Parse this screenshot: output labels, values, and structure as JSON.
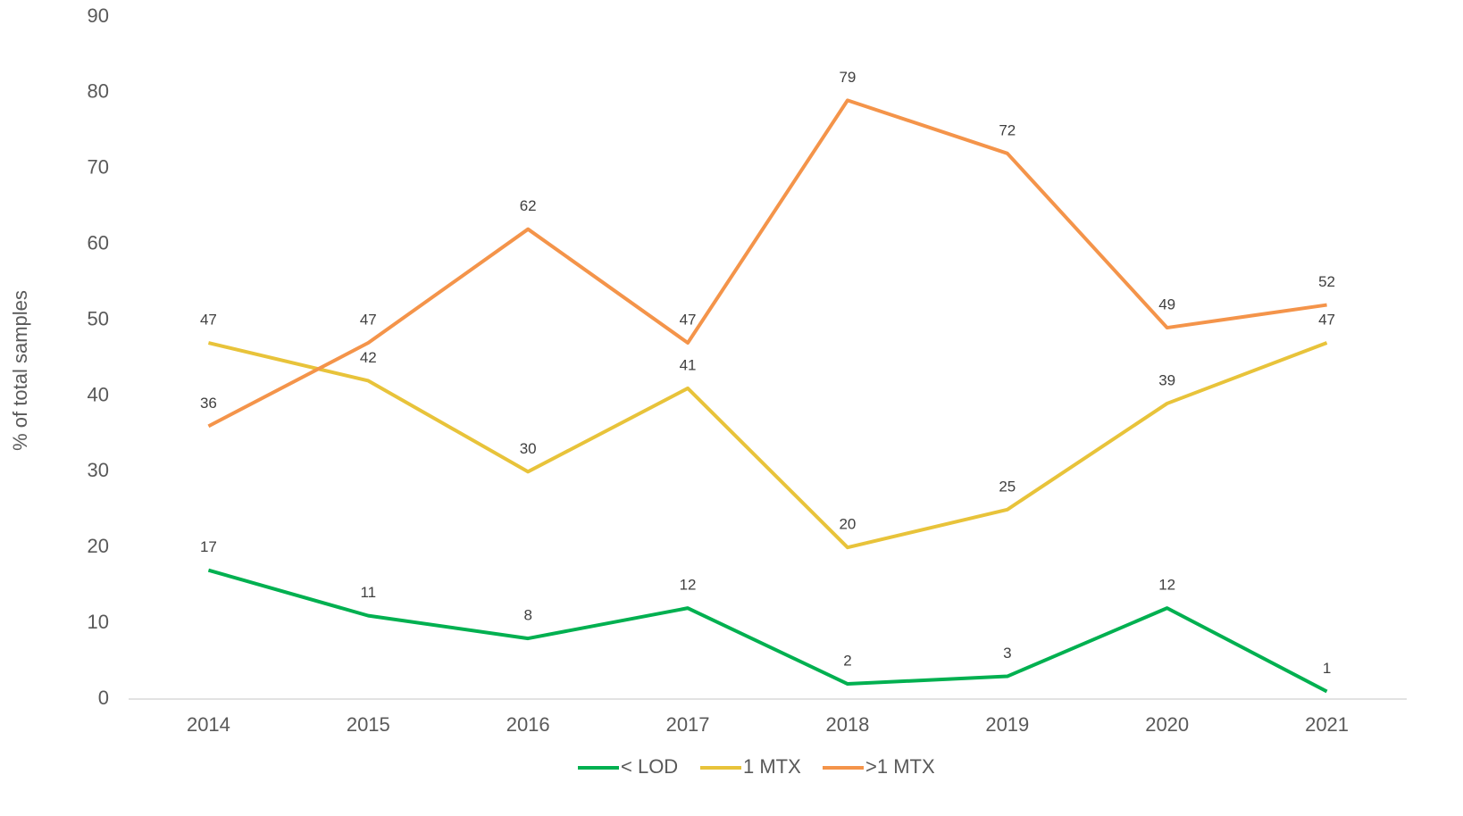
{
  "chart_data": {
    "type": "line",
    "y_label": "% of total samples",
    "categories": [
      "2014",
      "2015",
      "2016",
      "2017",
      "2018",
      "2019",
      "2020",
      "2021"
    ],
    "series": [
      {
        "name": "< LOD",
        "color": "#00b050",
        "values": [
          17,
          11,
          8,
          12,
          2,
          3,
          12,
          1
        ]
      },
      {
        "name": "1 MTX",
        "color": "#e8c33a",
        "values": [
          47,
          42,
          30,
          41,
          20,
          25,
          39,
          47
        ]
      },
      {
        "name": ">1 MTX",
        "color": "#f4944a",
        "values": [
          36,
          47,
          62,
          47,
          79,
          72,
          49,
          52
        ]
      }
    ],
    "ylim": [
      0,
      90
    ],
    "yticks": [
      0,
      10,
      20,
      30,
      40,
      50,
      60,
      70,
      80,
      90
    ],
    "grid": false,
    "legend": "bottom",
    "data_labels": true
  }
}
